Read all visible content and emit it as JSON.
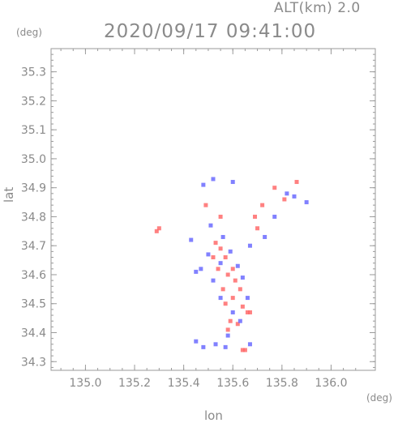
{
  "header": {
    "altitude_label": "ALT(km) 2.0",
    "timestamp": "2020/09/17 09:41:00"
  },
  "colors": {
    "frame": "#9a9a9a",
    "text": "#8a8a8a",
    "positive": "#ff6b6b",
    "negative": "#6b6bff"
  },
  "chart_data": {
    "type": "scatter",
    "xlabel": "lon",
    "ylabel": "lat",
    "x_unit": "(deg)",
    "y_unit": "(deg)",
    "xlim": [
      134.86,
      136.18
    ],
    "ylim": [
      34.27,
      35.38
    ],
    "x_ticks": [
      "135.0",
      "135.2",
      "135.4",
      "135.6",
      "135.8",
      "136.0"
    ],
    "y_ticks": [
      "34.3",
      "34.4",
      "34.5",
      "34.6",
      "34.7",
      "34.8",
      "34.9",
      "35.0",
      "35.1",
      "35.2",
      "35.3"
    ],
    "grid": false,
    "series": [
      {
        "color": "#ff6b6b",
        "points": [
          [
            135.29,
            34.75
          ],
          [
            135.3,
            34.76
          ],
          [
            135.53,
            34.71
          ],
          [
            135.55,
            34.69
          ],
          [
            135.57,
            34.66
          ],
          [
            135.54,
            34.62
          ],
          [
            135.58,
            34.6
          ],
          [
            135.61,
            34.58
          ],
          [
            135.56,
            34.55
          ],
          [
            135.63,
            34.55
          ],
          [
            135.6,
            34.52
          ],
          [
            135.57,
            34.5
          ],
          [
            135.64,
            34.49
          ],
          [
            135.66,
            34.47
          ],
          [
            135.67,
            34.47
          ],
          [
            135.59,
            34.44
          ],
          [
            135.62,
            34.43
          ],
          [
            135.58,
            34.41
          ],
          [
            135.65,
            34.34
          ],
          [
            135.64,
            34.34
          ],
          [
            135.6,
            34.62
          ],
          [
            135.52,
            34.66
          ],
          [
            135.69,
            34.8
          ],
          [
            135.72,
            34.84
          ],
          [
            135.77,
            34.9
          ],
          [
            135.81,
            34.86
          ],
          [
            135.86,
            34.92
          ],
          [
            135.7,
            34.76
          ],
          [
            135.49,
            34.84
          ],
          [
            135.55,
            34.8
          ]
        ]
      },
      {
        "color": "#6b6bff",
        "points": [
          [
            135.47,
            34.62
          ],
          [
            135.5,
            34.67
          ],
          [
            135.52,
            34.58
          ],
          [
            135.55,
            34.64
          ],
          [
            135.59,
            34.68
          ],
          [
            135.62,
            34.63
          ],
          [
            135.64,
            34.59
          ],
          [
            135.55,
            34.52
          ],
          [
            135.6,
            34.47
          ],
          [
            135.63,
            34.44
          ],
          [
            135.58,
            34.39
          ],
          [
            135.45,
            34.37
          ],
          [
            135.48,
            34.35
          ],
          [
            135.53,
            34.36
          ],
          [
            135.57,
            34.35
          ],
          [
            135.67,
            34.36
          ],
          [
            135.48,
            34.91
          ],
          [
            135.52,
            34.93
          ],
          [
            135.6,
            34.92
          ],
          [
            135.82,
            34.88
          ],
          [
            135.85,
            34.87
          ],
          [
            135.9,
            34.85
          ],
          [
            135.77,
            34.8
          ],
          [
            135.73,
            34.73
          ],
          [
            135.67,
            34.7
          ],
          [
            135.45,
            34.61
          ],
          [
            135.66,
            34.52
          ],
          [
            135.43,
            34.72
          ],
          [
            135.56,
            34.73
          ],
          [
            135.51,
            34.77
          ]
        ]
      }
    ]
  }
}
